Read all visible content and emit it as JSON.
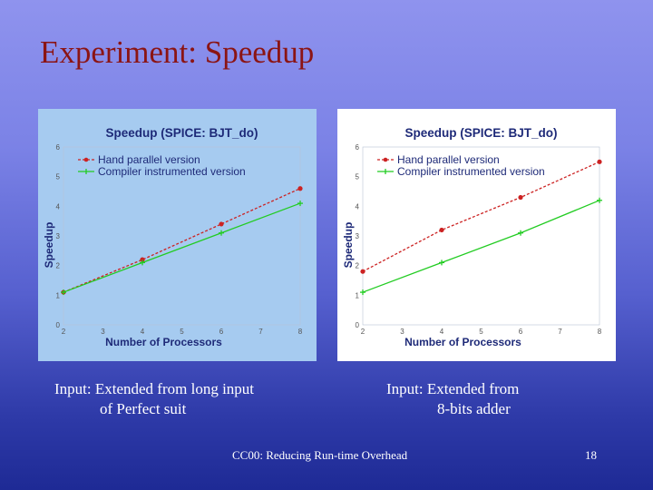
{
  "slide": {
    "title": "Experiment: Speedup",
    "caption_left_line1": "Input: Extended from long input",
    "caption_left_line2": "of Perfect suit",
    "caption_right_line1": "Input: Extended from",
    "caption_right_line2": "8-bits adder",
    "footer": "CC00: Reducing Run-time Overhead",
    "page_number": "18"
  },
  "colors": {
    "left_panel_bg": "#a6cbf0",
    "right_panel_bg": "#ffffff",
    "hand_parallel": "#cc2222",
    "compiler_instrumented": "#22cc22",
    "title_text": "#8b1414"
  },
  "chart_data": [
    {
      "type": "line",
      "title": "Speedup (SPICE: BJT_do)",
      "xlabel": "Number of Processors",
      "ylabel": "Speedup",
      "x": [
        2,
        4,
        6,
        8
      ],
      "xlim": [
        2,
        8
      ],
      "ylim": [
        0,
        6
      ],
      "xticks": [
        "2",
        "3",
        "4",
        "5",
        "6",
        "7",
        "8"
      ],
      "yticks": [
        "0",
        "1",
        "2",
        "3",
        "4",
        "5",
        "6"
      ],
      "grid": false,
      "legend_position": "top-left",
      "series": [
        {
          "name": "Hand parallel version",
          "values": [
            1.1,
            2.2,
            3.4,
            4.6
          ],
          "style": "dashed",
          "marker": "dot",
          "color": "#cc2222"
        },
        {
          "name": "Compiler instrumented version",
          "values": [
            1.1,
            2.1,
            3.1,
            4.1
          ],
          "style": "solid",
          "marker": "plus",
          "color": "#22cc22"
        }
      ]
    },
    {
      "type": "line",
      "title": "Speedup (SPICE: BJT_do)",
      "xlabel": "Number of Processors",
      "ylabel": "Speedup",
      "x": [
        2,
        4,
        6,
        8
      ],
      "xlim": [
        2,
        8
      ],
      "ylim": [
        0,
        6
      ],
      "xticks": [
        "2",
        "3",
        "4",
        "5",
        "6",
        "7",
        "8"
      ],
      "yticks": [
        "0",
        "1",
        "2",
        "3",
        "4",
        "5",
        "6"
      ],
      "grid": false,
      "legend_position": "top-left",
      "series": [
        {
          "name": "Hand parallel version",
          "values": [
            1.8,
            3.2,
            4.3,
            5.5
          ],
          "style": "dashed",
          "marker": "dot",
          "color": "#cc2222"
        },
        {
          "name": "Compiler instrumented version",
          "values": [
            1.1,
            2.1,
            3.1,
            4.2
          ],
          "style": "solid",
          "marker": "plus",
          "color": "#22cc22"
        }
      ]
    }
  ]
}
